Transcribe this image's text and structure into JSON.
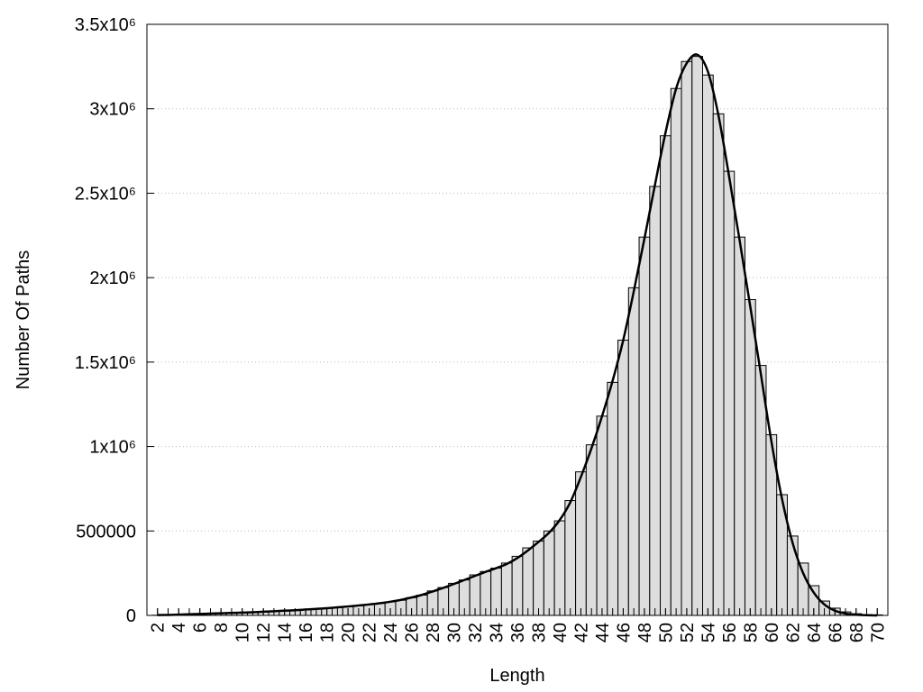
{
  "chart_data": {
    "type": "bar",
    "x_label": "Length",
    "y_label": "Number Of Paths",
    "x": [
      2,
      3,
      4,
      5,
      6,
      7,
      8,
      9,
      10,
      11,
      12,
      13,
      14,
      15,
      16,
      17,
      18,
      19,
      20,
      21,
      22,
      23,
      24,
      25,
      26,
      27,
      28,
      29,
      30,
      31,
      32,
      33,
      34,
      35,
      36,
      37,
      38,
      39,
      40,
      41,
      42,
      43,
      44,
      45,
      46,
      47,
      48,
      49,
      50,
      51,
      52,
      53,
      54,
      55,
      56,
      57,
      58,
      59,
      60,
      61,
      62,
      63,
      64,
      65,
      66,
      67,
      68,
      69,
      70
    ],
    "series": [
      {
        "type": "bar",
        "color": "#dddddd",
        "values": [
          1000,
          3000,
          5000,
          7000,
          9000,
          11000,
          13000,
          15000,
          17000,
          19000,
          21000,
          24000,
          27000,
          30000,
          34000,
          38000,
          42000,
          46000,
          51000,
          57000,
          64000,
          71000,
          80000,
          90000,
          105000,
          120000,
          145000,
          165000,
          190000,
          210000,
          240000,
          260000,
          280000,
          310000,
          350000,
          400000,
          440000,
          500000,
          560000,
          680000,
          850000,
          1010000,
          1180000,
          1380000,
          1630000,
          1940000,
          2240000,
          2540000,
          2840000,
          3120000,
          3280000,
          3310000,
          3200000,
          2970000,
          2630000,
          2240000,
          1870000,
          1480000,
          1070000,
          715000,
          470000,
          310000,
          176000,
          85000,
          43000,
          21000,
          10000,
          5000,
          3000
        ]
      },
      {
        "type": "line",
        "color": "#000000",
        "values": [
          2000,
          3000,
          5000,
          7000,
          9000,
          11000,
          13000,
          15000,
          17000,
          19000,
          22000,
          25000,
          28000,
          31000,
          35000,
          39000,
          43000,
          48000,
          53000,
          59000,
          65000,
          72000,
          81000,
          92000,
          106000,
          122000,
          142000,
          163000,
          186000,
          210000,
          234000,
          258000,
          280000,
          305000,
          340000,
          385000,
          435000,
          490000,
          565000,
          670000,
          820000,
          990000,
          1180000,
          1390000,
          1630000,
          1920000,
          2230000,
          2550000,
          2860000,
          3120000,
          3270000,
          3320000,
          3220000,
          2960000,
          2600000,
          2220000,
          1830000,
          1430000,
          1030000,
          690000,
          430000,
          250000,
          135000,
          65000,
          28000,
          11000,
          4000,
          1000,
          0
        ]
      }
    ],
    "xlim": [
      1,
      71
    ],
    "xticks": [
      2,
      4,
      6,
      8,
      10,
      12,
      14,
      16,
      18,
      20,
      22,
      24,
      26,
      28,
      30,
      32,
      34,
      36,
      38,
      40,
      42,
      44,
      46,
      48,
      50,
      52,
      54,
      56,
      58,
      60,
      62,
      64,
      66,
      68,
      70
    ],
    "ylim": [
      0,
      3500000
    ],
    "yticks": [
      0,
      500000,
      {
        "value": 1000000,
        "label": "1x10⁶"
      },
      {
        "value": 1500000,
        "label": "1.5x10⁶"
      },
      {
        "value": 2000000,
        "label": "2x10⁶"
      },
      {
        "value": 2500000,
        "label": "2.5x10⁶"
      },
      {
        "value": 3000000,
        "label": "3x10⁶"
      },
      {
        "value": 3500000,
        "label": "3.5x10⁶"
      }
    ],
    "grid": true
  }
}
